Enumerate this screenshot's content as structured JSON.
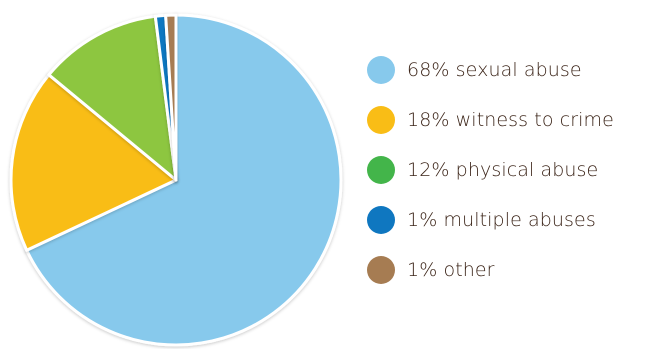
{
  "chart_data": {
    "type": "pie",
    "title": "",
    "slices": [
      {
        "label": "68% sexual abuse",
        "value": 68,
        "color": "#87c9ec"
      },
      {
        "label": "18% witness to crime",
        "value": 18,
        "color": "#f9bd16"
      },
      {
        "label": "12% physical abuse",
        "value": 12,
        "color": "#8dc63f"
      },
      {
        "label": "1% multiple abuses",
        "value": 1,
        "color": "#0f77c0"
      },
      {
        "label": "1% other",
        "value": 1,
        "color": "#a67c52"
      }
    ],
    "legend_position": "right"
  },
  "legend": {
    "items": [
      {
        "label": "68% sexual abuse",
        "color": "#87c9ec"
      },
      {
        "label": "18% witness to crime",
        "color": "#f9bd16"
      },
      {
        "label": "12% physical abuse",
        "color": "#43b54a"
      },
      {
        "label": "1% multiple abuses",
        "color": "#0f77c0"
      },
      {
        "label": "1% other",
        "color": "#a67c52"
      }
    ]
  }
}
